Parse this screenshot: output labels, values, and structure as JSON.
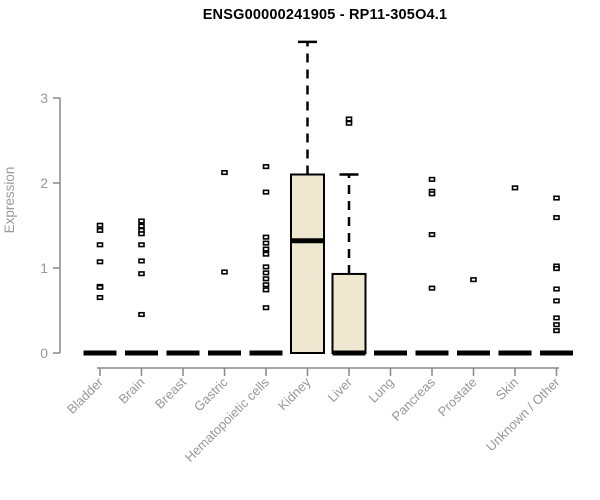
{
  "header": {
    "title": "ENSG00000241905 - RP11-305O4.1"
  },
  "chart_data": {
    "type": "boxplot",
    "title": "ENSG00000241905 - RP11-305O4.1",
    "xlabel": "",
    "ylabel": "Expression",
    "ylim": [
      0,
      3.7
    ],
    "yticks": [
      0,
      1,
      2,
      3
    ],
    "grid": false,
    "legend": "none",
    "categories": [
      "Bladder",
      "Brain",
      "Breast",
      "Gastric",
      "Hematopoietic cells",
      "Kidney",
      "Liver",
      "Lung",
      "Pancreas",
      "Prostate",
      "Skin",
      "Unknown / Other"
    ],
    "boxes": [
      {
        "category": "Bladder",
        "q1": 0,
        "median": 0,
        "q3": 0,
        "whisker_low": 0,
        "whisker_high": 0,
        "outliers": [
          1.5,
          1.44,
          1.27,
          1.07,
          0.78,
          0.77,
          0.65
        ]
      },
      {
        "category": "Brain",
        "q1": 0,
        "median": 0,
        "q3": 0,
        "whisker_low": 0,
        "whisker_high": 0,
        "outliers": [
          1.55,
          1.49,
          1.44,
          1.4,
          1.27,
          1.08,
          0.93,
          0.45
        ]
      },
      {
        "category": "Breast",
        "q1": 0,
        "median": 0,
        "q3": 0,
        "whisker_low": 0,
        "whisker_high": 0,
        "outliers": []
      },
      {
        "category": "Gastric",
        "q1": 0,
        "median": 0,
        "q3": 0,
        "whisker_low": 0,
        "whisker_high": 0,
        "outliers": [
          2.12,
          0.95
        ]
      },
      {
        "category": "Hematopoietic cells",
        "q1": 0,
        "median": 0,
        "q3": 0,
        "whisker_low": 0,
        "whisker_high": 0,
        "outliers": [
          2.19,
          1.89,
          1.36,
          1.29,
          1.22,
          1.16,
          1.01,
          0.94,
          0.87,
          0.8,
          0.74,
          0.53
        ]
      },
      {
        "category": "Kidney",
        "q1": 0,
        "median": 1.32,
        "q3": 2.1,
        "whisker_low": 0,
        "whisker_high": 3.66,
        "outliers": []
      },
      {
        "category": "Liver",
        "q1": 0,
        "median": 0,
        "q3": 0.93,
        "whisker_low": 0,
        "whisker_high": 2.1,
        "outliers": [
          2.75,
          2.7
        ]
      },
      {
        "category": "Lung",
        "q1": 0,
        "median": 0,
        "q3": 0,
        "whisker_low": 0,
        "whisker_high": 0,
        "outliers": []
      },
      {
        "category": "Pancreas",
        "q1": 0,
        "median": 0,
        "q3": 0,
        "whisker_low": 0,
        "whisker_high": 0,
        "outliers": [
          2.04,
          1.9,
          1.87,
          1.39,
          0.76
        ]
      },
      {
        "category": "Prostate",
        "q1": 0,
        "median": 0,
        "q3": 0,
        "whisker_low": 0,
        "whisker_high": 0,
        "outliers": [
          0.86
        ]
      },
      {
        "category": "Skin",
        "q1": 0,
        "median": 0,
        "q3": 0,
        "whisker_low": 0,
        "whisker_high": 0,
        "outliers": [
          1.94
        ]
      },
      {
        "category": "Unknown / Other",
        "q1": 0,
        "median": 0,
        "q3": 0,
        "whisker_low": 0,
        "whisker_high": 0,
        "outliers": [
          1.82,
          1.59,
          1.02,
          0.99,
          0.75,
          0.61,
          0.41,
          0.33,
          0.26
        ]
      }
    ],
    "colors": {
      "box_fill": "#EDE8CF",
      "box_stroke": "#000000",
      "median": "#000000",
      "whisker": "#000000",
      "outlier_fill": "#ffffff",
      "outlier_stroke": "#000000",
      "axis_line": "#888888",
      "axis_text": "#989898",
      "background": "#ffffff",
      "title_text": "#000000"
    }
  }
}
